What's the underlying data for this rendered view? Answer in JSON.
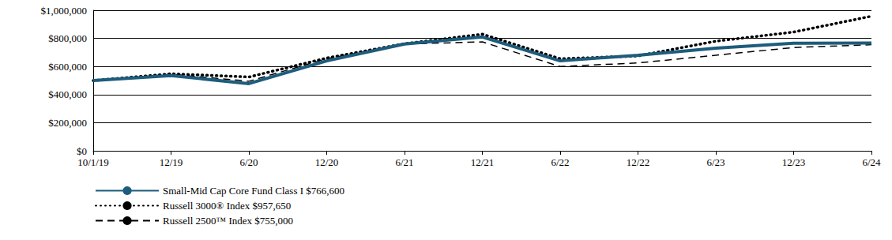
{
  "chart_data": {
    "type": "line",
    "categories": [
      "10/1/19",
      "12/19",
      "6/20",
      "12/20",
      "6/21",
      "12/21",
      "6/22",
      "12/22",
      "6/23",
      "12/23",
      "6/24"
    ],
    "series": [
      {
        "name": "Small-Mid Cap Core Fund Class I $766,600",
        "color": "#1d5c7c",
        "line_style": "solid",
        "values": [
          500000,
          535000,
          478000,
          640000,
          760000,
          810000,
          640000,
          680000,
          730000,
          765000,
          766600
        ]
      },
      {
        "name": "Russell 3000® Index $957,650",
        "color": "#000000",
        "line_style": "dotted",
        "values": [
          500000,
          548000,
          525000,
          660000,
          762000,
          830000,
          655000,
          675000,
          780000,
          845000,
          957650
        ]
      },
      {
        "name": "Russell 2500™ Index $755,000",
        "color": "#000000",
        "line_style": "dashed",
        "values": [
          500000,
          545000,
          495000,
          655000,
          760000,
          775000,
          600000,
          625000,
          680000,
          735000,
          755000
        ]
      }
    ],
    "ylim": [
      0,
      1000000
    ],
    "yticks": [
      {
        "value": 0,
        "label": "$0"
      },
      {
        "value": 200000,
        "label": "$200,000"
      },
      {
        "value": 400000,
        "label": "$400,000"
      },
      {
        "value": 600000,
        "label": "$600,000"
      },
      {
        "value": 800000,
        "label": "$800,000"
      },
      {
        "value": 1000000,
        "label": "$1,000,000"
      }
    ],
    "grid": true,
    "legend": "bottom-left"
  }
}
